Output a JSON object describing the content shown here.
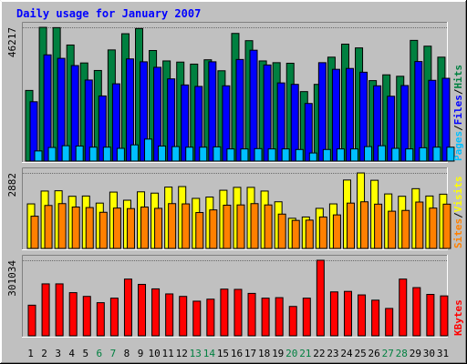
{
  "chart_data": [
    {
      "type": "bar",
      "title": "Daily usage for January 2007",
      "categories": [
        "1",
        "2",
        "3",
        "4",
        "5",
        "6",
        "7",
        "8",
        "9",
        "10",
        "11",
        "12",
        "13",
        "14",
        "15",
        "16",
        "17",
        "18",
        "19",
        "20",
        "21",
        "22",
        "23",
        "24",
        "25",
        "26",
        "27",
        "28",
        "29",
        "30",
        "31"
      ],
      "weekend_days": [
        "6",
        "7",
        "13",
        "14",
        "20",
        "21",
        "27",
        "28"
      ],
      "ymax_label": "46217",
      "ymax": 46217,
      "legend": [
        "Pages",
        "Files",
        "Hits"
      ],
      "legend_separator": "/",
      "series": [
        {
          "name": "Hits",
          "color": "#008040",
          "values": [
            24400,
            46200,
            46100,
            40100,
            33900,
            31300,
            38400,
            44000,
            45800,
            38200,
            34600,
            34200,
            33500,
            35000,
            31200,
            44100,
            41600,
            34600,
            34000,
            33800,
            24000,
            26500,
            35900,
            40400,
            39100,
            27800,
            29800,
            29300,
            41700,
            39700,
            35900
          ]
        },
        {
          "name": "Files",
          "color": "#0000ff",
          "values": [
            20500,
            36700,
            35500,
            33000,
            28000,
            22500,
            26700,
            35300,
            34300,
            32400,
            28400,
            26300,
            25800,
            34300,
            26000,
            35100,
            38300,
            33200,
            27000,
            26500,
            19900,
            34000,
            31700,
            32000,
            30700,
            26000,
            22400,
            26100,
            34400,
            27900,
            28600
          ]
        },
        {
          "name": "Pages",
          "color": "#00c0ff",
          "values": [
            3500,
            4700,
            5300,
            5200,
            4800,
            4800,
            4400,
            5600,
            7600,
            5200,
            5000,
            4800,
            4800,
            4900,
            4200,
            4200,
            4300,
            4200,
            4200,
            4000,
            2800,
            4000,
            4200,
            4200,
            5000,
            5300,
            4400,
            4200,
            4600,
            4800,
            4800
          ]
        }
      ]
    },
    {
      "type": "bar",
      "categories": [
        "1",
        "2",
        "3",
        "4",
        "5",
        "6",
        "7",
        "8",
        "9",
        "10",
        "11",
        "12",
        "13",
        "14",
        "15",
        "16",
        "17",
        "18",
        "19",
        "20",
        "21",
        "22",
        "23",
        "24",
        "25",
        "26",
        "27",
        "28",
        "29",
        "30",
        "31"
      ],
      "ymax_label": "2882",
      "ymax": 2882,
      "legend": [
        "Sites",
        "Visits"
      ],
      "legend_separator": "/",
      "series": [
        {
          "name": "Visits",
          "color": "#ffff00",
          "values": [
            1700,
            2190,
            2200,
            1990,
            2000,
            1730,
            2150,
            1840,
            2160,
            2110,
            2340,
            2360,
            1910,
            1960,
            2220,
            2330,
            2330,
            2190,
            1780,
            1150,
            1200,
            1530,
            1700,
            2610,
            2880,
            2600,
            2080,
            1990,
            2280,
            2000,
            2070
          ]
        },
        {
          "name": "Sites",
          "color": "#ff8000",
          "values": [
            1230,
            1640,
            1710,
            1580,
            1560,
            1380,
            1540,
            1520,
            1580,
            1530,
            1710,
            1700,
            1370,
            1470,
            1650,
            1660,
            1710,
            1660,
            1310,
            1070,
            1080,
            1200,
            1280,
            1730,
            1780,
            1690,
            1420,
            1450,
            1770,
            1540,
            1690
          ]
        }
      ]
    },
    {
      "type": "bar",
      "categories": [
        "1",
        "2",
        "3",
        "4",
        "5",
        "6",
        "7",
        "8",
        "9",
        "10",
        "11",
        "12",
        "13",
        "14",
        "15",
        "16",
        "17",
        "18",
        "19",
        "20",
        "21",
        "22",
        "23",
        "24",
        "25",
        "26",
        "27",
        "28",
        "29",
        "30",
        "31"
      ],
      "ymax_label": "301034",
      "ymax": 301034,
      "legend": [
        "KBytes"
      ],
      "legend_separator": "/",
      "series": [
        {
          "name": "KBytes",
          "color": "#ff0000",
          "values": [
            122000,
            207000,
            207000,
            172000,
            157000,
            132000,
            150000,
            226000,
            205000,
            187000,
            167000,
            157000,
            138000,
            146000,
            186000,
            185000,
            169000,
            150000,
            152000,
            117000,
            150000,
            301000,
            175000,
            177000,
            163000,
            142000,
            109000,
            226000,
            192000,
            165000,
            159000
          ]
        }
      ]
    }
  ]
}
